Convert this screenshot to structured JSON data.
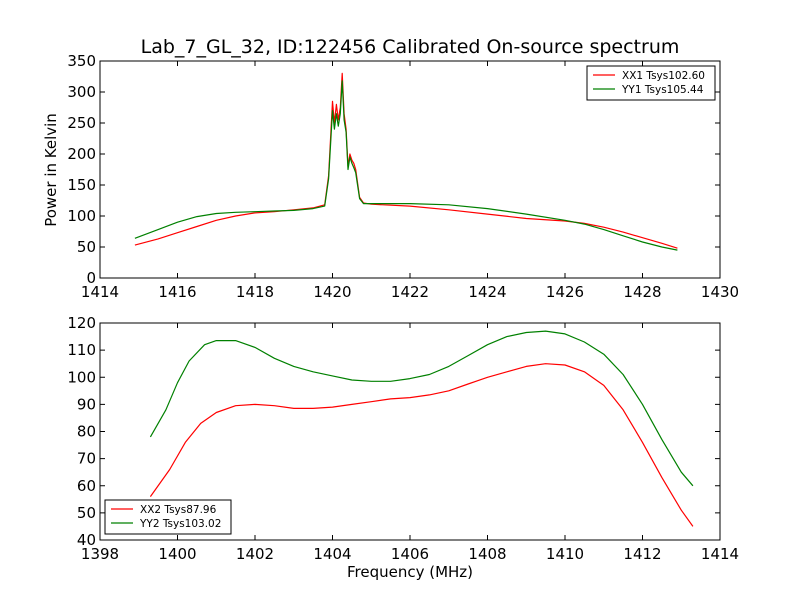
{
  "chart_data": [
    {
      "type": "line",
      "title": "Lab_7_GL_32, ID:122456 Calibrated On-source spectrum",
      "xlabel": "",
      "ylabel": "Power in Kelvin",
      "xlim": [
        1414,
        1430
      ],
      "ylim": [
        0,
        350
      ],
      "xticks": [
        1414,
        1416,
        1418,
        1420,
        1422,
        1424,
        1426,
        1428,
        1430
      ],
      "yticks": [
        0,
        50,
        100,
        150,
        200,
        250,
        300,
        350
      ],
      "legend_position": "top-right",
      "grid": false,
      "series": [
        {
          "name": "XX1 Tsys102.60",
          "color": "#ff0000",
          "points": [
            [
              1414.9,
              53
            ],
            [
              1415.5,
              63
            ],
            [
              1416.0,
              73
            ],
            [
              1416.5,
              83
            ],
            [
              1417.0,
              93
            ],
            [
              1417.5,
              100
            ],
            [
              1418.0,
              105
            ],
            [
              1418.5,
              107
            ],
            [
              1419.0,
              110
            ],
            [
              1419.5,
              113
            ],
            [
              1419.8,
              118
            ],
            [
              1419.9,
              165
            ],
            [
              1420.0,
              285
            ],
            [
              1420.05,
              250
            ],
            [
              1420.1,
              280
            ],
            [
              1420.15,
              255
            ],
            [
              1420.2,
              275
            ],
            [
              1420.25,
              330
            ],
            [
              1420.3,
              265
            ],
            [
              1420.35,
              240
            ],
            [
              1420.4,
              180
            ],
            [
              1420.45,
              200
            ],
            [
              1420.5,
              190
            ],
            [
              1420.55,
              185
            ],
            [
              1420.6,
              175
            ],
            [
              1420.7,
              130
            ],
            [
              1420.8,
              121
            ],
            [
              1421.0,
              119
            ],
            [
              1422.0,
              116
            ],
            [
              1423.0,
              110
            ],
            [
              1424.0,
              103
            ],
            [
              1425.0,
              96
            ],
            [
              1426.0,
              92
            ],
            [
              1426.5,
              88
            ],
            [
              1427.0,
              82
            ],
            [
              1427.5,
              74
            ],
            [
              1428.0,
              65
            ],
            [
              1428.5,
              56
            ],
            [
              1428.9,
              48
            ]
          ]
        },
        {
          "name": "YY1 Tsys105.44",
          "color": "#008000",
          "points": [
            [
              1414.9,
              64
            ],
            [
              1415.5,
              78
            ],
            [
              1416.0,
              90
            ],
            [
              1416.5,
              99
            ],
            [
              1417.0,
              104
            ],
            [
              1417.5,
              106
            ],
            [
              1418.0,
              107
            ],
            [
              1418.5,
              108
            ],
            [
              1419.0,
              109
            ],
            [
              1419.5,
              112
            ],
            [
              1419.8,
              116
            ],
            [
              1419.9,
              160
            ],
            [
              1420.0,
              270
            ],
            [
              1420.05,
              240
            ],
            [
              1420.1,
              265
            ],
            [
              1420.15,
              245
            ],
            [
              1420.2,
              265
            ],
            [
              1420.25,
              318
            ],
            [
              1420.3,
              255
            ],
            [
              1420.35,
              235
            ],
            [
              1420.4,
              175
            ],
            [
              1420.45,
              195
            ],
            [
              1420.5,
              185
            ],
            [
              1420.55,
              178
            ],
            [
              1420.6,
              170
            ],
            [
              1420.7,
              128
            ],
            [
              1420.8,
              120
            ],
            [
              1421.0,
              120
            ],
            [
              1422.0,
              120
            ],
            [
              1423.0,
              118
            ],
            [
              1424.0,
              112
            ],
            [
              1425.0,
              103
            ],
            [
              1426.0,
              93
            ],
            [
              1426.5,
              87
            ],
            [
              1427.0,
              78
            ],
            [
              1427.5,
              68
            ],
            [
              1428.0,
              58
            ],
            [
              1428.5,
              50
            ],
            [
              1428.9,
              45
            ]
          ]
        }
      ]
    },
    {
      "type": "line",
      "title": "",
      "xlabel": "Frequency (MHz)",
      "ylabel": "",
      "xlim": [
        1398,
        1414
      ],
      "ylim": [
        40,
        120
      ],
      "xticks": [
        1398,
        1400,
        1402,
        1404,
        1406,
        1408,
        1410,
        1412,
        1414
      ],
      "yticks": [
        40,
        50,
        60,
        70,
        80,
        90,
        100,
        110,
        120
      ],
      "legend_position": "bottom-left",
      "grid": false,
      "series": [
        {
          "name": "XX2 Tsys87.96",
          "color": "#ff0000",
          "points": [
            [
              1399.3,
              56
            ],
            [
              1399.8,
              66
            ],
            [
              1400.2,
              76
            ],
            [
              1400.6,
              83
            ],
            [
              1401.0,
              87
            ],
            [
              1401.5,
              89.5
            ],
            [
              1402.0,
              90
            ],
            [
              1402.5,
              89.5
            ],
            [
              1403.0,
              88.5
            ],
            [
              1403.5,
              88.5
            ],
            [
              1404.0,
              89
            ],
            [
              1404.5,
              90
            ],
            [
              1405.0,
              91
            ],
            [
              1405.5,
              92
            ],
            [
              1406.0,
              92.5
            ],
            [
              1406.5,
              93.5
            ],
            [
              1407.0,
              95
            ],
            [
              1407.5,
              97.5
            ],
            [
              1408.0,
              100
            ],
            [
              1408.5,
              102
            ],
            [
              1409.0,
              104
            ],
            [
              1409.5,
              105
            ],
            [
              1410.0,
              104.5
            ],
            [
              1410.5,
              102
            ],
            [
              1411.0,
              97
            ],
            [
              1411.5,
              88
            ],
            [
              1412.0,
              76
            ],
            [
              1412.5,
              63
            ],
            [
              1413.0,
              51
            ],
            [
              1413.3,
              45
            ]
          ]
        },
        {
          "name": "YY2 Tsys103.02",
          "color": "#008000",
          "points": [
            [
              1399.3,
              78
            ],
            [
              1399.7,
              88
            ],
            [
              1400.0,
              98
            ],
            [
              1400.3,
              106
            ],
            [
              1400.7,
              112
            ],
            [
              1401.0,
              113.5
            ],
            [
              1401.5,
              113.5
            ],
            [
              1402.0,
              111
            ],
            [
              1402.5,
              107
            ],
            [
              1403.0,
              104
            ],
            [
              1403.5,
              102
            ],
            [
              1404.0,
              100.5
            ],
            [
              1404.5,
              99
            ],
            [
              1405.0,
              98.5
            ],
            [
              1405.5,
              98.5
            ],
            [
              1406.0,
              99.5
            ],
            [
              1406.5,
              101
            ],
            [
              1407.0,
              104
            ],
            [
              1407.5,
              108
            ],
            [
              1408.0,
              112
            ],
            [
              1408.5,
              115
            ],
            [
              1409.0,
              116.5
            ],
            [
              1409.5,
              117
            ],
            [
              1410.0,
              116
            ],
            [
              1410.5,
              113
            ],
            [
              1411.0,
              108.5
            ],
            [
              1411.5,
              101
            ],
            [
              1412.0,
              90
            ],
            [
              1412.5,
              77
            ],
            [
              1413.0,
              65
            ],
            [
              1413.3,
              60
            ]
          ]
        }
      ]
    }
  ]
}
